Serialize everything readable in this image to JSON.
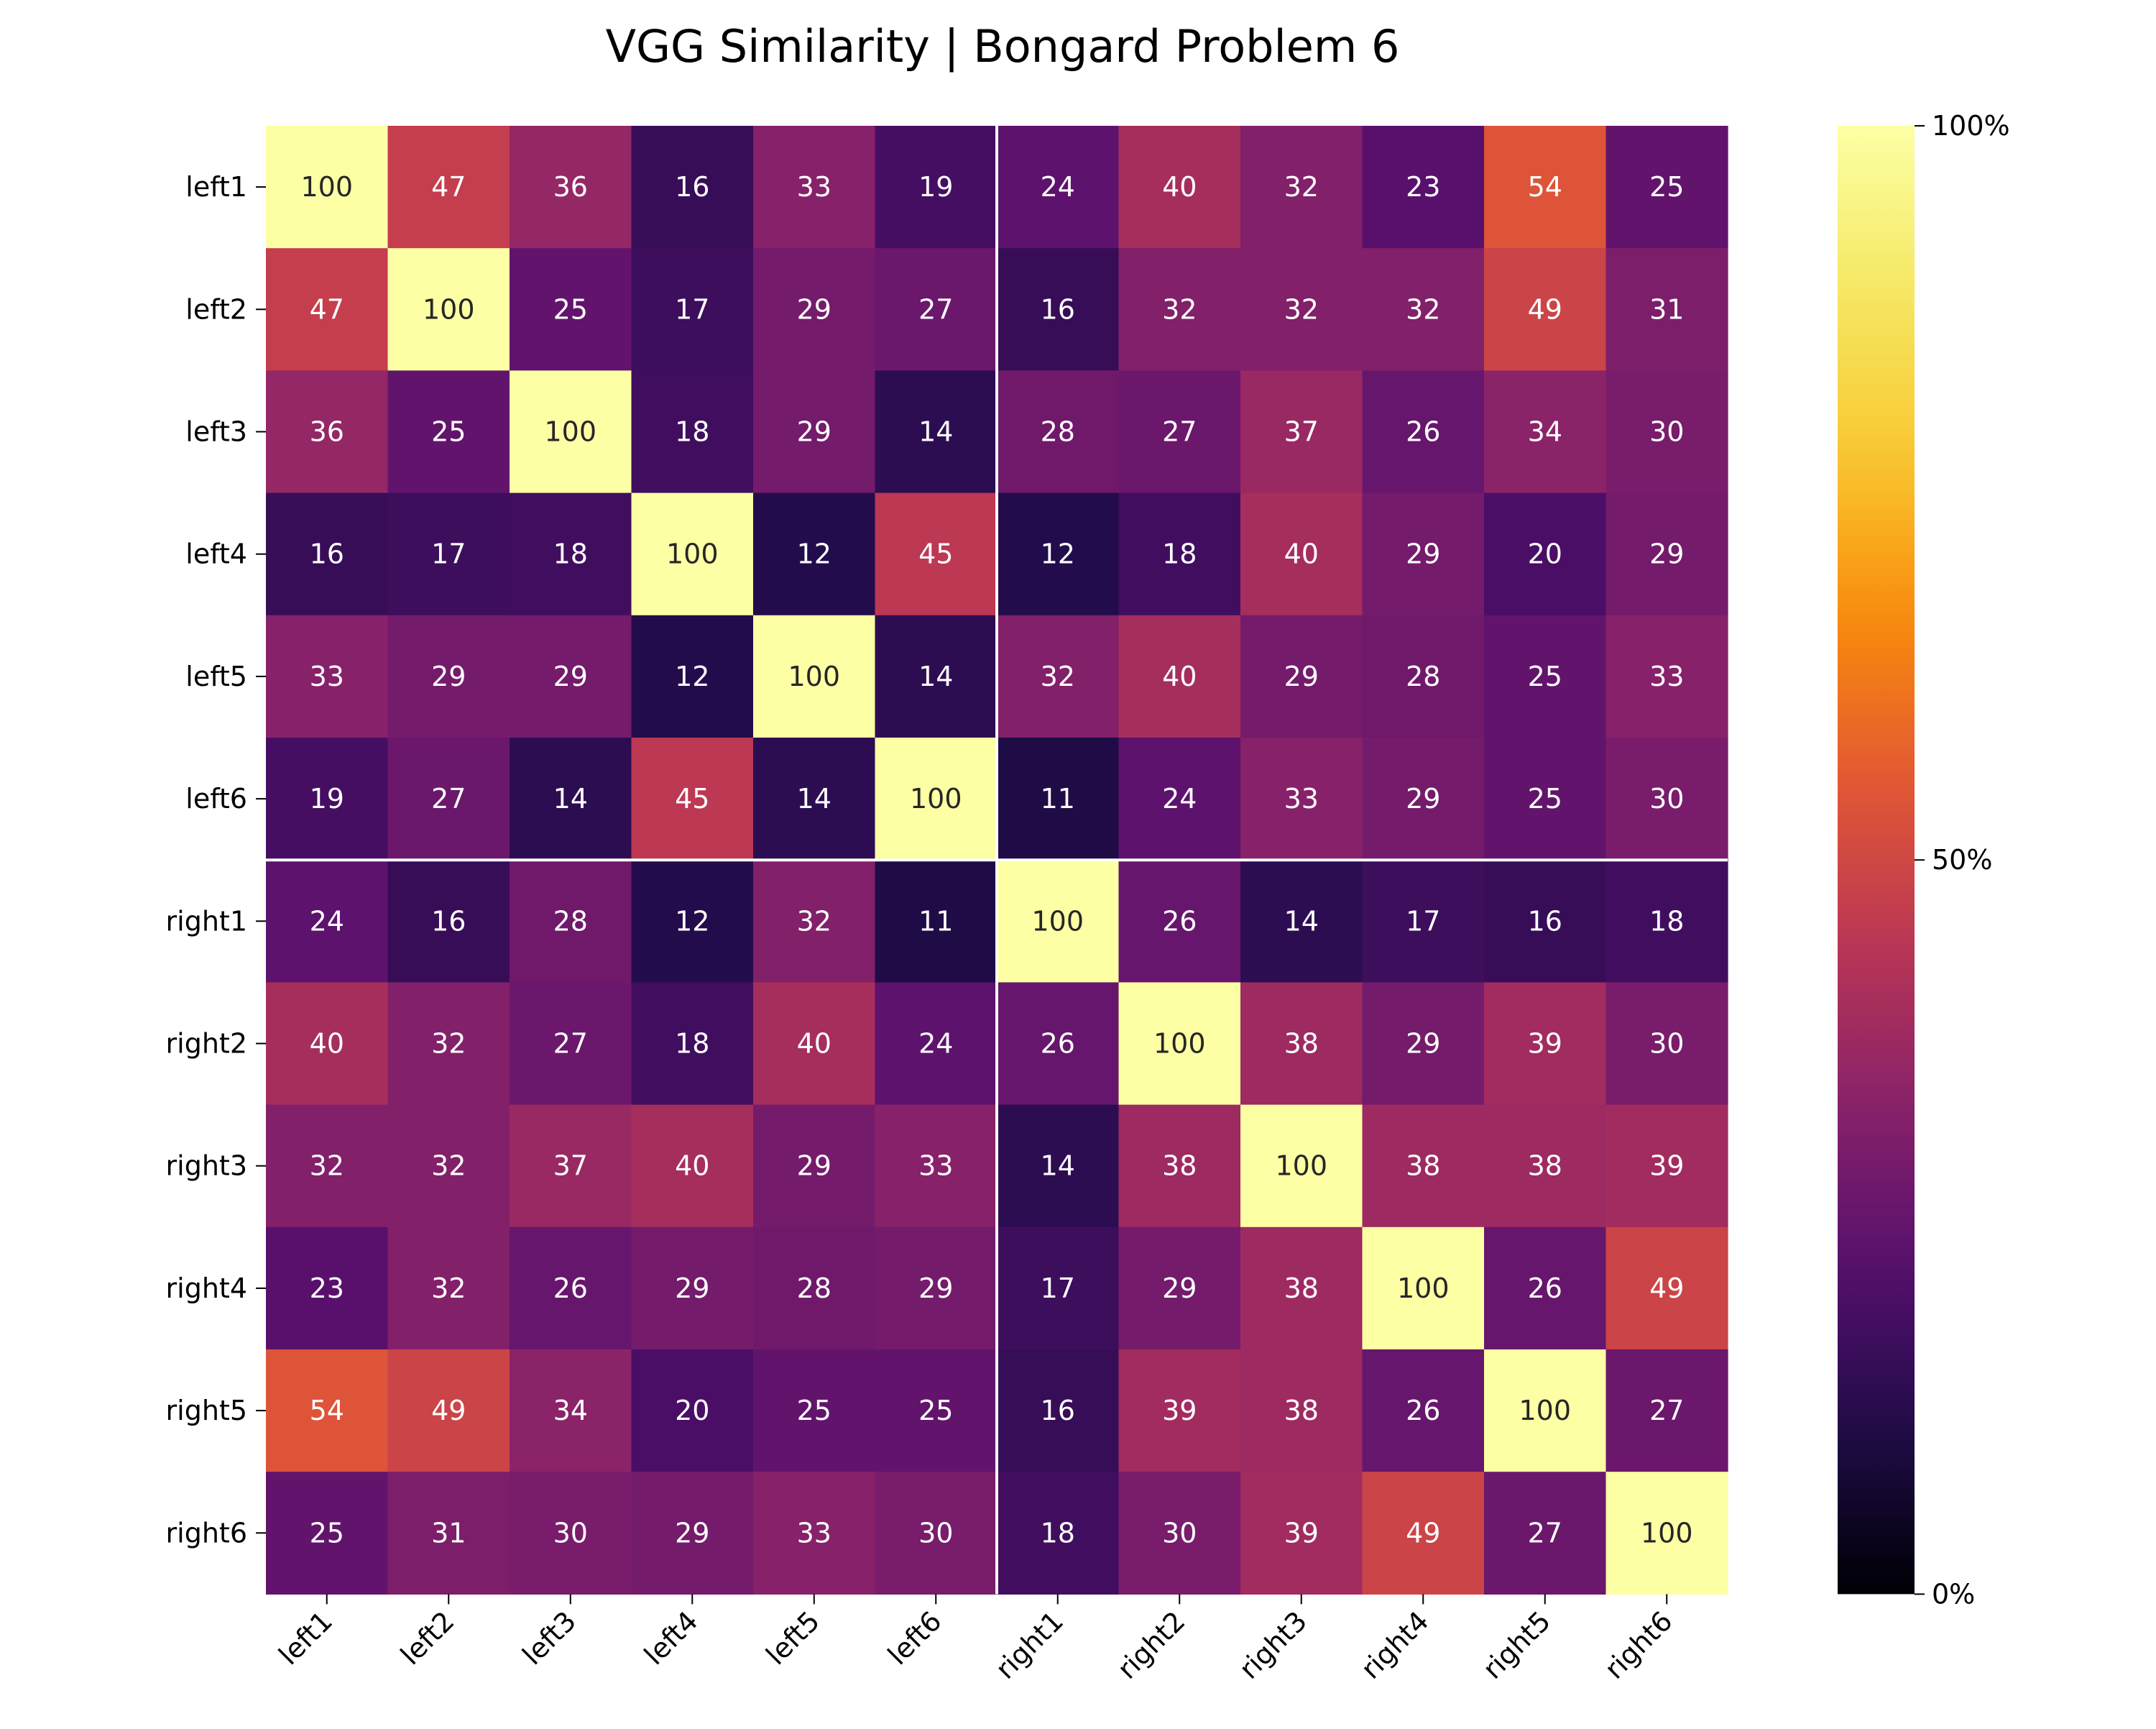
{
  "chart_data": {
    "type": "heatmap",
    "title": "VGG Similarity | Bongard Problem 6",
    "xlabel": "",
    "ylabel": "",
    "rows": [
      "left1",
      "left2",
      "left3",
      "left4",
      "left5",
      "left6",
      "right1",
      "right2",
      "right3",
      "right4",
      "right5",
      "right6"
    ],
    "columns": [
      "left1",
      "left2",
      "left3",
      "left4",
      "left5",
      "left6",
      "right1",
      "right2",
      "right3",
      "right4",
      "right5",
      "right6"
    ],
    "values": [
      [
        100,
        47,
        36,
        16,
        33,
        19,
        24,
        40,
        32,
        23,
        54,
        25
      ],
      [
        47,
        100,
        25,
        17,
        29,
        27,
        16,
        32,
        32,
        32,
        49,
        31
      ],
      [
        36,
        25,
        100,
        18,
        29,
        14,
        28,
        27,
        37,
        26,
        34,
        30
      ],
      [
        16,
        17,
        18,
        100,
        12,
        45,
        12,
        18,
        40,
        29,
        20,
        29
      ],
      [
        33,
        29,
        29,
        12,
        100,
        14,
        32,
        40,
        29,
        28,
        25,
        33
      ],
      [
        19,
        27,
        14,
        45,
        14,
        100,
        11,
        24,
        33,
        29,
        25,
        30
      ],
      [
        24,
        16,
        28,
        12,
        32,
        11,
        100,
        26,
        14,
        17,
        16,
        18
      ],
      [
        40,
        32,
        27,
        18,
        40,
        24,
        26,
        100,
        38,
        29,
        39,
        30
      ],
      [
        32,
        32,
        37,
        40,
        29,
        33,
        14,
        38,
        100,
        38,
        38,
        39
      ],
      [
        23,
        32,
        26,
        29,
        28,
        29,
        17,
        29,
        38,
        100,
        26,
        49
      ],
      [
        54,
        49,
        34,
        20,
        25,
        25,
        16,
        39,
        38,
        26,
        100,
        27
      ],
      [
        25,
        31,
        30,
        29,
        33,
        30,
        18,
        30,
        39,
        49,
        27,
        100
      ]
    ],
    "value_range": [
      0,
      100
    ],
    "colormap": "inferno",
    "separator_after_index": 6,
    "separator_color": "#ffffff",
    "colorbar": {
      "ticks": [
        0,
        50,
        100
      ],
      "tick_labels": [
        "0%",
        "50%",
        "100%"
      ],
      "placement": "right"
    }
  }
}
